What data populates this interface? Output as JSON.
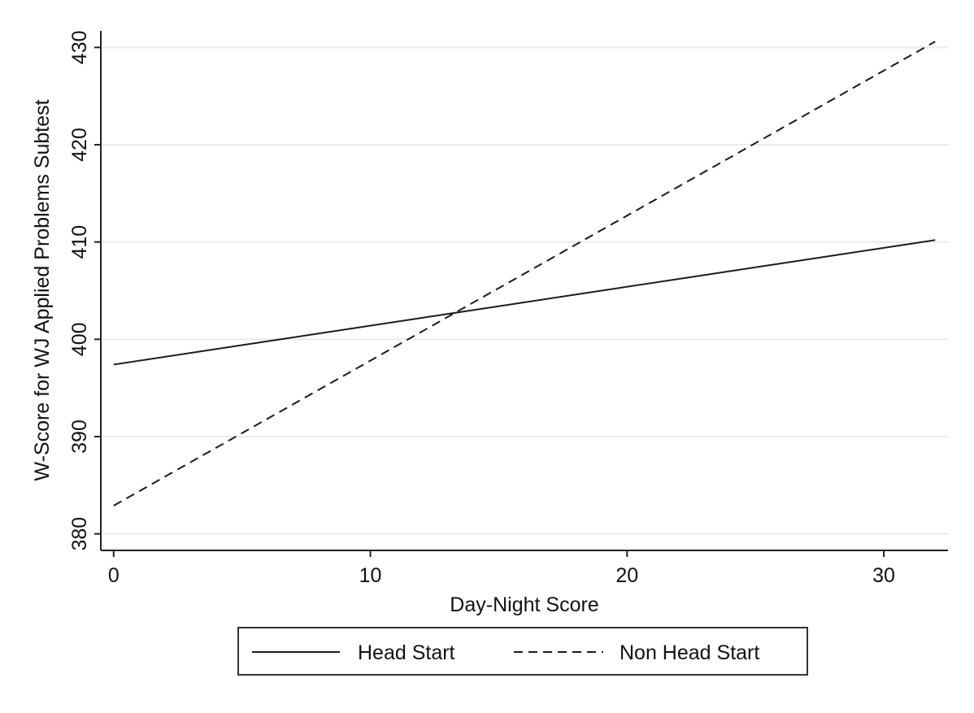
{
  "chart_data": {
    "type": "line",
    "title": "",
    "xlabel": "Day-Night Score",
    "ylabel": "W-Score for WJ Applied Problems Subtest",
    "xlim": [
      -0.5,
      32.5
    ],
    "ylim": [
      378.3,
      431.7
    ],
    "xticks": [
      0,
      10,
      20,
      30
    ],
    "yticks": [
      380,
      390,
      400,
      410,
      420,
      430
    ],
    "grid": "horizontal",
    "legend_position": "bottom",
    "series": [
      {
        "name": "Head Start",
        "line_style": "solid",
        "color": "#1a1a1a",
        "x": [
          0,
          32
        ],
        "y": [
          397.4,
          410.2
        ]
      },
      {
        "name": "Non Head Start",
        "line_style": "dashed",
        "color": "#1a1a1a",
        "x": [
          0,
          32
        ],
        "y": [
          382.9,
          430.6
        ]
      }
    ]
  }
}
